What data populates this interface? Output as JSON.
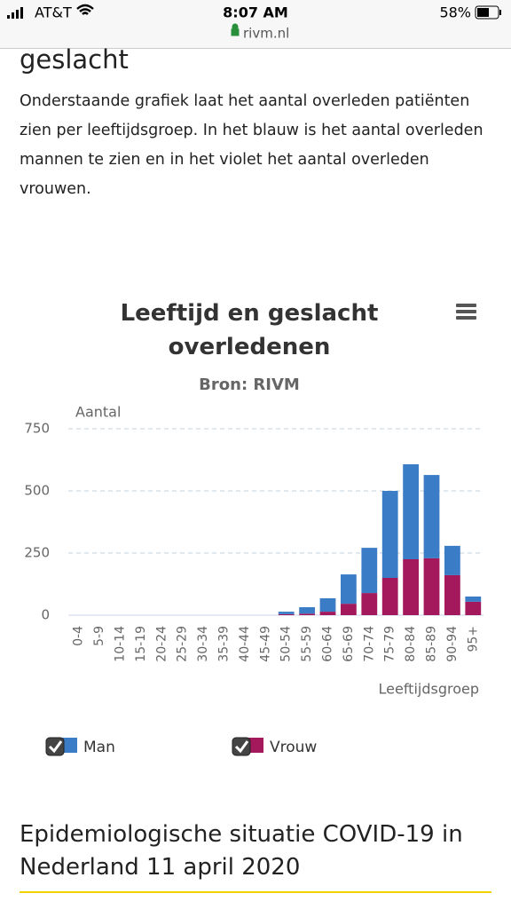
{
  "status_bar": {
    "carrier": "AT&T",
    "time": "8:07 AM",
    "battery": "58%",
    "url": "rivm.nl"
  },
  "section_heading": "geslacht",
  "paragraph": "Onderstaande grafiek laat het aantal overleden patiënten zien per leeftijdsgroep. In het blauw is het aantal overleden mannen te zien en in het violet het aantal overleden vrouwen.",
  "chart_data": {
    "type": "bar",
    "stacked": true,
    "title": "Leeftijd en geslacht overledenen",
    "subtitle": "Bron: RIVM",
    "y_label": "Aantal",
    "x_label": "Leeftijdsgroep",
    "categories": [
      "0-4",
      "5-9",
      "10-14",
      "15-19",
      "20-24",
      "25-29",
      "30-34",
      "35-39",
      "40-44",
      "45-49",
      "50-54",
      "55-59",
      "60-64",
      "65-69",
      "70-74",
      "75-79",
      "80-84",
      "85-89",
      "90-94",
      "95+"
    ],
    "series": [
      {
        "name": "Man",
        "color": "#3a7cc6",
        "values": [
          0,
          0,
          0,
          0,
          0,
          0,
          0,
          0,
          0,
          0,
          10,
          26,
          54,
          118,
          182,
          350,
          382,
          335,
          118,
          21
        ]
      },
      {
        "name": "Vrouw",
        "color": "#a3195b",
        "values": [
          0,
          0,
          0,
          0,
          0,
          0,
          0,
          0,
          0,
          0,
          4,
          6,
          14,
          46,
          89,
          150,
          225,
          229,
          161,
          54
        ]
      }
    ],
    "ylim": [
      0,
      750
    ],
    "yticks": [
      0,
      250,
      500,
      750
    ],
    "grid": true,
    "legend": "bottom-left"
  },
  "next_heading": "Epidemiologische situatie COVID-19 in Nederland 11 april 2020"
}
